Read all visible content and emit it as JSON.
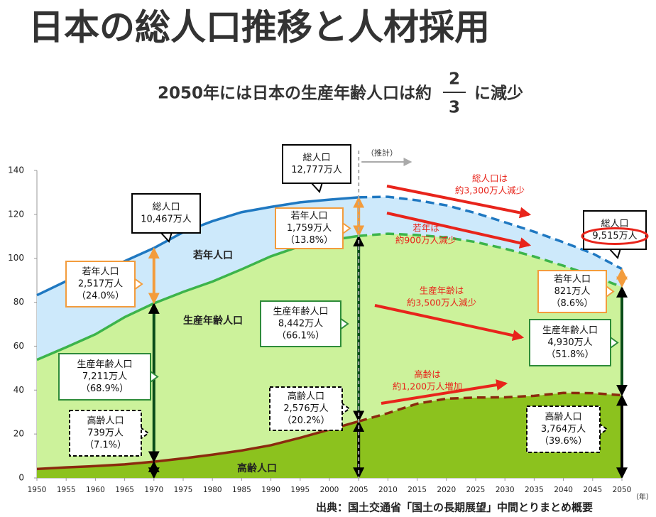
{
  "title": "日本の総人口推移と人材採用",
  "subtitle": {
    "text": "2050年には日本の生産年齢人口は約",
    "numerator": "2",
    "denominator": "3",
    "suffix": "に減少"
  },
  "source": "出典：国土交通省「国土の長期展望」中間とりまとめ概要",
  "chart_data": {
    "type": "stacked_area",
    "x": [
      1950,
      1955,
      1960,
      1965,
      1970,
      1975,
      1980,
      1985,
      1990,
      1995,
      2000,
      2005,
      2010,
      2015,
      2020,
      2025,
      2030,
      2035,
      2040,
      2045,
      2050
    ],
    "series": [
      {
        "name": "高齢人口",
        "color": "#8cc21e",
        "line_color": "#8b2a0e",
        "values": [
          4.1,
          4.8,
          5.4,
          6.2,
          7.39,
          8.9,
          10.6,
          12.5,
          14.9,
          18.3,
          22.0,
          25.76,
          29.5,
          33.8,
          36.1,
          36.6,
          36.7,
          37.4,
          38.7,
          38.6,
          37.64
        ]
      },
      {
        "name": "生産年齢人口",
        "color": "#ccf29b",
        "line_color": "#3cb44b",
        "values": [
          49.7,
          54.7,
          60.0,
          67.0,
          72.11,
          75.8,
          78.8,
          82.5,
          86.0,
          87.2,
          86.2,
          84.42,
          81.7,
          76.8,
          73.4,
          70.8,
          67.7,
          63.4,
          57.9,
          53.5,
          49.3
        ]
      },
      {
        "name": "若年人口",
        "color": "#cde9fb",
        "line_color": "#1f78c1",
        "values": [
          29.4,
          30.1,
          28.1,
          25.5,
          25.17,
          27.2,
          27.5,
          26.0,
          22.5,
          20.0,
          18.5,
          17.59,
          16.8,
          15.8,
          14.6,
          13.2,
          12.0,
          11.3,
          10.7,
          10.1,
          8.21
        ]
      }
    ],
    "projection_from": 2005,
    "projection_label": "（推計）",
    "xlim": [
      1950,
      2050
    ],
    "xticks": [
      1950,
      1955,
      1960,
      1965,
      1970,
      1975,
      1980,
      1985,
      1990,
      1995,
      2000,
      2005,
      2010,
      2015,
      2020,
      2025,
      2030,
      2035,
      2040,
      2045,
      2050
    ],
    "x_unit": "（年）",
    "ylim": [
      0,
      140
    ],
    "yticks": [
      0,
      20,
      40,
      60,
      80,
      100,
      120,
      140
    ],
    "grid": false,
    "callouts": [
      {
        "lines": [
          "総人口",
          "10,467万人"
        ],
        "color": "#000000",
        "dashed": false
      },
      {
        "lines": [
          "若年人口",
          "2,517万人",
          "（24.0%）"
        ],
        "color": "#f39c3c",
        "dashed": false
      },
      {
        "lines": [
          "生産年齢人口",
          "7,211万人",
          "（68.9%）"
        ],
        "color": "#2e8b3a",
        "dashed": false
      },
      {
        "lines": [
          "高齢人口",
          "739万人",
          "（7.1%）"
        ],
        "color": "#000000",
        "dashed": true
      },
      {
        "lines": [
          "総人口",
          "12,777万人"
        ],
        "color": "#000000",
        "dashed": false
      },
      {
        "lines": [
          "若年人口",
          "1,759万人",
          "（13.8%）"
        ],
        "color": "#f39c3c",
        "dashed": false
      },
      {
        "lines": [
          "生産年齢人口",
          "8,442万人",
          "（66.1%）"
        ],
        "color": "#2e8b3a",
        "dashed": false
      },
      {
        "lines": [
          "高齢人口",
          "2,576万人",
          "（20.2%）"
        ],
        "color": "#000000",
        "dashed": true
      },
      {
        "lines": [
          "総人口",
          "9,515万人"
        ],
        "color": "#000000",
        "dashed": false,
        "highlight": "#e8241b"
      },
      {
        "lines": [
          "若年人口",
          "821万人",
          "（8.6%）"
        ],
        "color": "#f39c3c",
        "dashed": false
      },
      {
        "lines": [
          "生産年齢人口",
          "4,930万人",
          "（51.8%）"
        ],
        "color": "#2e8b3a",
        "dashed": false
      },
      {
        "lines": [
          "高齢人口",
          "3,764万人",
          "（39.6%）"
        ],
        "color": "#000000",
        "dashed": true
      }
    ],
    "trend_color": "#e8241b",
    "trend_notes": [
      {
        "lines": [
          "総人口は",
          "約3,300万人減少"
        ]
      },
      {
        "lines": [
          "若年は",
          "約900万人減少"
        ]
      },
      {
        "lines": [
          "生産年齢は",
          "約3,500万人減少"
        ]
      },
      {
        "lines": [
          "高齢は",
          "約1,200万人増加"
        ]
      }
    ]
  }
}
